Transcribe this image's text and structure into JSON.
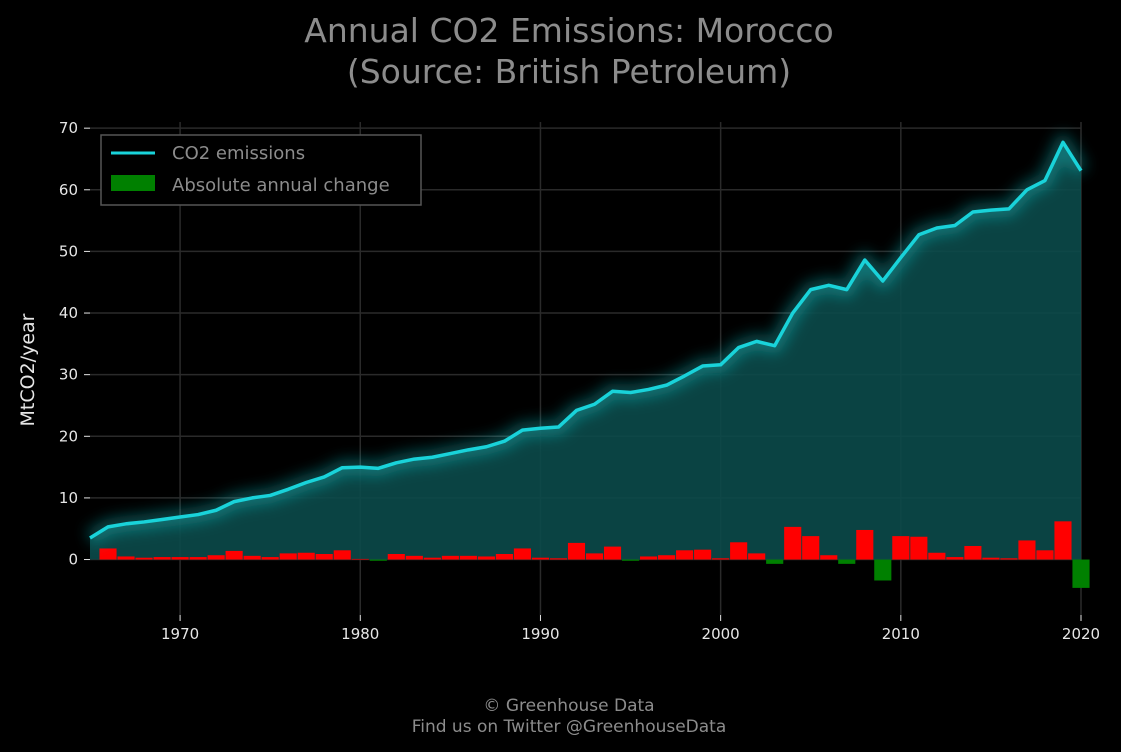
{
  "chart_data": {
    "type": "line",
    "title": "Annual CO2 Emissions: Morocco",
    "subtitle": "(Source: British Petroleum)",
    "ylabel": "MtCO2/year",
    "xlabel": "",
    "xlim": [
      1965,
      2020
    ],
    "ylim": [
      -9,
      71
    ],
    "x_ticks": [
      1970,
      1980,
      1990,
      2000,
      2010,
      2020
    ],
    "y_ticks": [
      0,
      10,
      20,
      30,
      40,
      50,
      60,
      70
    ],
    "grid": true,
    "legend_position": "top-left",
    "colors": {
      "line": "#19d3da",
      "area": "#0b4a4a",
      "increase": "#ff0000",
      "decrease": "#008000",
      "grid": "#2a2a2a",
      "background": "#000000"
    },
    "x": [
      1965,
      1966,
      1967,
      1968,
      1969,
      1970,
      1971,
      1972,
      1973,
      1974,
      1975,
      1976,
      1977,
      1978,
      1979,
      1980,
      1981,
      1982,
      1983,
      1984,
      1985,
      1986,
      1987,
      1988,
      1989,
      1990,
      1991,
      1992,
      1993,
      1994,
      1995,
      1996,
      1997,
      1998,
      1999,
      2000,
      2001,
      2002,
      2003,
      2004,
      2005,
      2006,
      2007,
      2008,
      2009,
      2010,
      2011,
      2012,
      2013,
      2014,
      2015,
      2016,
      2017,
      2018,
      2019,
      2020
    ],
    "series": [
      {
        "name": "CO2 emissions",
        "type": "line",
        "values": [
          3.5,
          5.3,
          5.8,
          6.1,
          6.5,
          6.9,
          7.3,
          8.0,
          9.4,
          10.0,
          10.4,
          11.4,
          12.5,
          13.4,
          14.9,
          15.0,
          14.8,
          15.7,
          16.3,
          16.6,
          17.2,
          17.8,
          18.3,
          19.2,
          21.0,
          21.3,
          21.5,
          24.2,
          25.2,
          27.3,
          27.1,
          27.6,
          28.3,
          29.8,
          31.4,
          31.6,
          34.4,
          35.4,
          34.7,
          40.0,
          43.8,
          44.5,
          43.8,
          48.6,
          45.2,
          49.0,
          52.7,
          53.8,
          54.2,
          56.4,
          56.7,
          56.9,
          60.0,
          61.5,
          67.7,
          63.1
        ]
      },
      {
        "name": "Absolute annual change",
        "type": "bar",
        "values": [
          0,
          1.8,
          0.5,
          0.3,
          0.4,
          0.4,
          0.4,
          0.7,
          1.4,
          0.6,
          0.4,
          1.0,
          1.1,
          0.9,
          1.5,
          0.1,
          -0.2,
          0.9,
          0.6,
          0.3,
          0.6,
          0.6,
          0.5,
          0.9,
          1.8,
          0.3,
          0.2,
          2.7,
          1.0,
          2.1,
          -0.2,
          0.5,
          0.7,
          1.5,
          1.6,
          0.2,
          2.8,
          1.0,
          -0.7,
          5.3,
          3.8,
          0.7,
          -0.7,
          4.8,
          -3.4,
          3.8,
          3.7,
          1.1,
          0.4,
          2.2,
          0.3,
          0.2,
          3.1,
          1.5,
          6.2,
          -4.6
        ]
      }
    ]
  },
  "credits": {
    "line1": "© Greenhouse Data",
    "line2": "Find us on Twitter @GreenhouseData"
  }
}
